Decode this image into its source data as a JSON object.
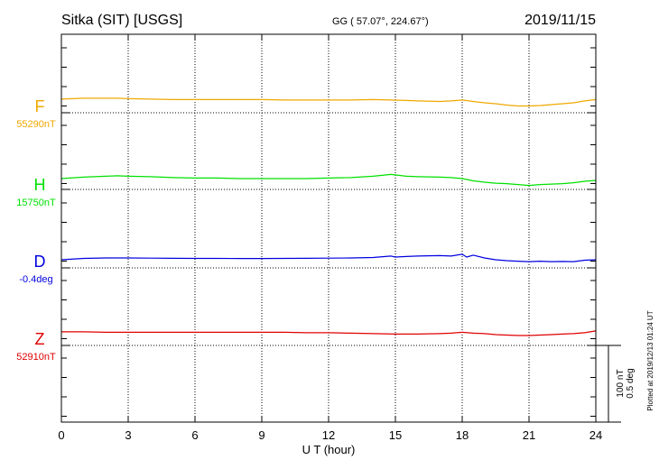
{
  "header": {
    "station": "Sitka (SIT)  [USGS]",
    "coords": "GG ( 57.07°, 224.67°)",
    "date": "2019/11/15"
  },
  "footer": {
    "plotted": "Plotted at 2019/12/13 01:24 UT"
  },
  "scale": {
    "nt_label": "100 nT",
    "deg_label": "0.5 deg"
  },
  "colors": {
    "F": "#f0a800",
    "H": "#00e000",
    "D": "#0000e0",
    "Z": "#e00000"
  },
  "chart_data": {
    "type": "line",
    "title": "Sitka (SIT)  [USGS]",
    "xlabel": "U T (hour)",
    "ylabel": "",
    "xlim": [
      0,
      24
    ],
    "x_ticks": [
      "0",
      "3",
      "6",
      "9",
      "12",
      "15",
      "18",
      "21",
      "24"
    ],
    "grid": true,
    "series": [
      {
        "name": "F",
        "baseline_label": "55290nT",
        "unit": "nT",
        "color": "#f0a800",
        "x": [
          0,
          1,
          2,
          2.5,
          3,
          4,
          5,
          6,
          7,
          8,
          9,
          10,
          11,
          12,
          13,
          14,
          14.8,
          15.5,
          16,
          17,
          17.5,
          18,
          18.5,
          19,
          19.5,
          20,
          20.5,
          21,
          21.5,
          22,
          22.5,
          23,
          23.5,
          24
        ],
        "values": [
          10,
          12,
          12,
          12,
          11,
          10,
          9,
          9,
          9,
          9,
          9,
          8,
          8,
          8,
          8,
          9,
          8,
          7,
          6,
          5,
          6,
          8,
          5,
          2,
          0,
          -3,
          -5,
          -5,
          -4,
          -2,
          0,
          2,
          6,
          9
        ]
      },
      {
        "name": "H",
        "baseline_label": "15750nT",
        "unit": "nT",
        "color": "#00e000",
        "x": [
          0,
          1,
          2,
          2.5,
          3,
          4,
          5,
          6,
          7,
          8,
          9,
          10,
          11,
          12,
          13,
          14,
          14.8,
          15.5,
          16,
          17,
          17.5,
          18,
          18.5,
          19,
          19.5,
          20,
          20.5,
          21,
          21.5,
          22,
          22.5,
          23,
          23.5,
          24
        ],
        "values": [
          4,
          7,
          9,
          10,
          9,
          8,
          6,
          5,
          5,
          4,
          4,
          4,
          4,
          5,
          6,
          9,
          13,
          9,
          8,
          7,
          6,
          4,
          -1,
          -4,
          -6,
          -7,
          -9,
          -11,
          -9,
          -8,
          -7,
          -5,
          -2,
          0
        ]
      },
      {
        "name": "D",
        "baseline_label": "-0.4deg",
        "unit": "deg",
        "color": "#0000e0",
        "x": [
          0,
          1,
          2,
          2.5,
          3,
          4,
          5,
          6,
          7,
          8,
          9,
          10,
          11,
          12,
          13,
          14,
          14.8,
          15,
          15.5,
          16,
          17,
          17.5,
          18,
          18.2,
          18.5,
          19,
          19.5,
          20,
          20.5,
          21,
          21.5,
          22,
          22.5,
          23,
          23.5,
          24
        ],
        "values": [
          -0.01,
          0.005,
          0.01,
          0.01,
          0.01,
          0.008,
          0.006,
          0.005,
          0.005,
          0.004,
          0.004,
          0.005,
          0.006,
          0.008,
          0.01,
          0.015,
          0.03,
          0.02,
          0.025,
          0.03,
          0.035,
          0.03,
          0.05,
          0.02,
          0.04,
          0.01,
          -0.01,
          -0.02,
          -0.025,
          -0.03,
          -0.025,
          -0.03,
          -0.028,
          -0.03,
          -0.015,
          -0.01
        ]
      },
      {
        "name": "Z",
        "baseline_label": "52910nT",
        "unit": "nT",
        "color": "#e00000",
        "x": [
          0,
          1,
          2,
          3,
          4,
          5,
          6,
          7,
          8,
          9,
          10,
          11,
          12,
          13,
          14,
          15,
          16,
          17,
          17.5,
          18,
          18.5,
          19,
          19.5,
          20,
          20.5,
          21,
          21.5,
          22,
          22.5,
          23,
          23.5,
          24
        ],
        "values": [
          10,
          10,
          9,
          9,
          9,
          9,
          9,
          9,
          9,
          9,
          9,
          8,
          8,
          7,
          6,
          5,
          5,
          6,
          7,
          9,
          7,
          6,
          4,
          3,
          2,
          2,
          3,
          4,
          5,
          6,
          8,
          12
        ]
      }
    ]
  }
}
